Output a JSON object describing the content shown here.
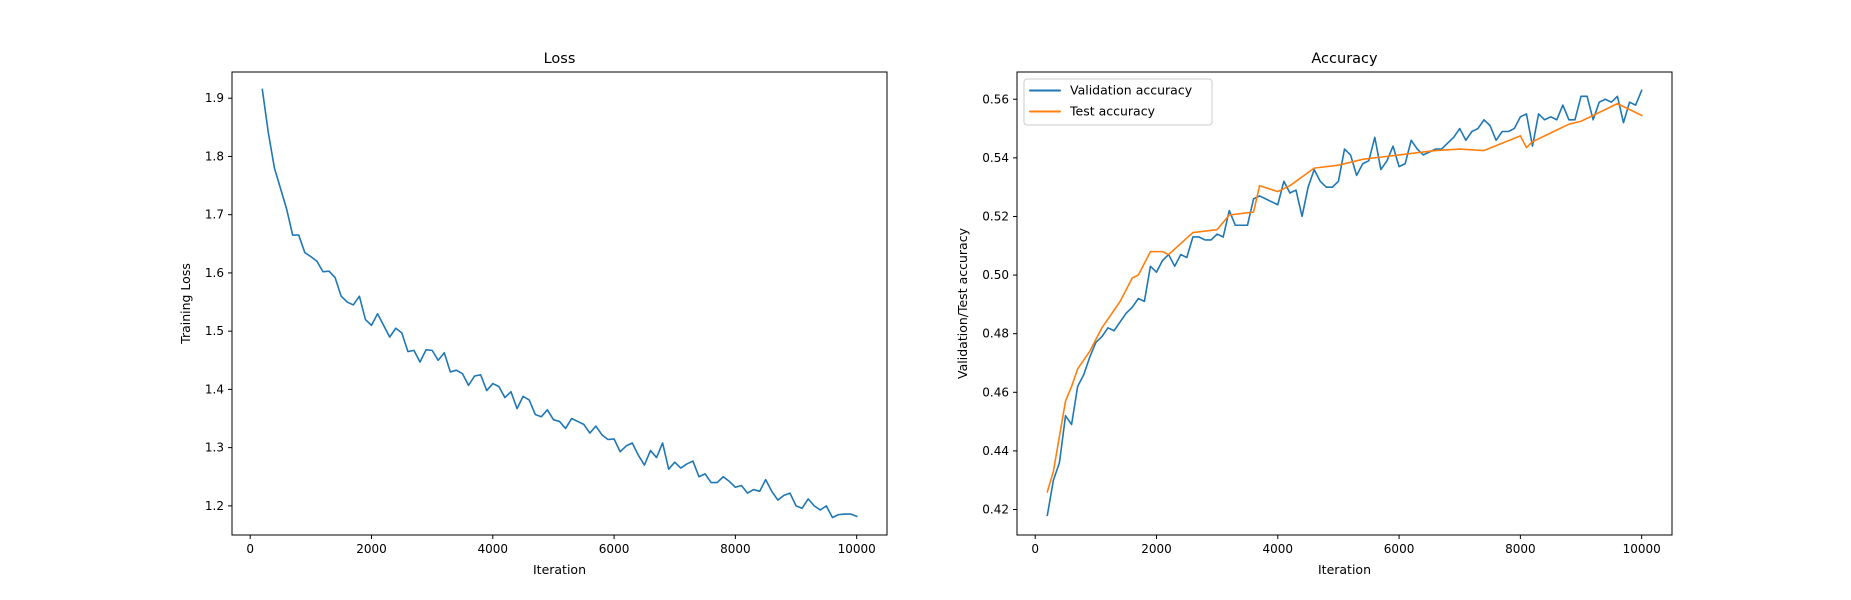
{
  "chart_data": [
    {
      "type": "line",
      "title": "Loss",
      "xlabel": "Iteration",
      "ylabel": "Training Loss",
      "xlim": [
        -300,
        10500
      ],
      "ylim": [
        1.15,
        1.945
      ],
      "xticks": [
        "0",
        "2000",
        "4000",
        "6000",
        "8000",
        "10000"
      ],
      "yticks": [
        "1.2",
        "1.3",
        "1.4",
        "1.5",
        "1.6",
        "1.7",
        "1.8",
        "1.9"
      ],
      "grid": false,
      "series": [
        {
          "color": "#1f77b4",
          "x": [
            200,
            300,
            400,
            500,
            600,
            700,
            800,
            900,
            1000,
            1100,
            1200,
            1300,
            1400,
            1500,
            1600,
            1700,
            1800,
            1900,
            2000,
            2100,
            2200,
            2300,
            2400,
            2500,
            2600,
            2700,
            2800,
            2900,
            3000,
            3100,
            3200,
            3300,
            3400,
            3500,
            3600,
            3700,
            3800,
            3900,
            4000,
            4100,
            4200,
            4300,
            4400,
            4500,
            4600,
            4700,
            4800,
            4900,
            5000,
            5100,
            5200,
            5300,
            5400,
            5500,
            5600,
            5700,
            5800,
            5900,
            6000,
            6100,
            6200,
            6300,
            6400,
            6500,
            6600,
            6700,
            6800,
            6900,
            7000,
            7100,
            7200,
            7300,
            7400,
            7500,
            7600,
            7700,
            7800,
            7900,
            8000,
            8100,
            8200,
            8300,
            8400,
            8500,
            8600,
            8700,
            8800,
            8900,
            9000,
            9100,
            9200,
            9300,
            9400,
            9500,
            9600,
            9700,
            9800,
            9900,
            10000
          ],
          "y": [
            1.915,
            1.84,
            1.78,
            1.745,
            1.71,
            1.665,
            1.665,
            1.635,
            1.628,
            1.62,
            1.602,
            1.603,
            1.592,
            1.56,
            1.55,
            1.545,
            1.56,
            1.52,
            1.51,
            1.53,
            1.51,
            1.49,
            1.505,
            1.497,
            1.465,
            1.467,
            1.447,
            1.468,
            1.467,
            1.45,
            1.463,
            1.43,
            1.433,
            1.427,
            1.407,
            1.423,
            1.425,
            1.398,
            1.41,
            1.405,
            1.386,
            1.396,
            1.367,
            1.388,
            1.382,
            1.357,
            1.353,
            1.365,
            1.348,
            1.345,
            1.333,
            1.35,
            1.345,
            1.34,
            1.325,
            1.337,
            1.322,
            1.314,
            1.315,
            1.293,
            1.303,
            1.308,
            1.287,
            1.27,
            1.295,
            1.283,
            1.308,
            1.263,
            1.275,
            1.265,
            1.272,
            1.277,
            1.25,
            1.255,
            1.24,
            1.24,
            1.25,
            1.242,
            1.232,
            1.235,
            1.222,
            1.228,
            1.225,
            1.245,
            1.225,
            1.21,
            1.218,
            1.222,
            1.2,
            1.196,
            1.212,
            1.2,
            1.193,
            1.2,
            1.18,
            1.185,
            1.186,
            1.186,
            1.182
          ]
        }
      ]
    },
    {
      "type": "line",
      "title": "Accuracy",
      "xlabel": "Iteration",
      "ylabel": "Validation/Test accuracy",
      "xlim": [
        -300,
        10500
      ],
      "ylim": [
        0.4113,
        0.5693
      ],
      "xticks": [
        "0",
        "2000",
        "4000",
        "6000",
        "8000",
        "10000"
      ],
      "yticks": [
        "0.42",
        "0.44",
        "0.46",
        "0.48",
        "0.50",
        "0.52",
        "0.54",
        "0.56"
      ],
      "grid": false,
      "legend": "top-left",
      "series": [
        {
          "name": "Validation accuracy",
          "color": "#1f77b4",
          "x": [
            200,
            300,
            400,
            500,
            600,
            700,
            800,
            900,
            1000,
            1100,
            1200,
            1300,
            1400,
            1500,
            1600,
            1700,
            1800,
            1900,
            2000,
            2100,
            2200,
            2300,
            2400,
            2500,
            2600,
            2700,
            2800,
            2900,
            3000,
            3100,
            3200,
            3300,
            3400,
            3500,
            3600,
            3700,
            3800,
            3900,
            4000,
            4100,
            4200,
            4300,
            4400,
            4500,
            4600,
            4700,
            4800,
            4900,
            5000,
            5100,
            5200,
            5300,
            5400,
            5500,
            5600,
            5700,
            5800,
            5900,
            6000,
            6100,
            6200,
            6300,
            6400,
            6500,
            6600,
            6700,
            6800,
            6900,
            7000,
            7100,
            7200,
            7300,
            7400,
            7500,
            7600,
            7700,
            7800,
            7900,
            8000,
            8100,
            8200,
            8300,
            8400,
            8500,
            8600,
            8700,
            8800,
            8900,
            9000,
            9100,
            9200,
            9300,
            9400,
            9500,
            9600,
            9700,
            9800,
            9900,
            10000
          ],
          "y": [
            0.418,
            0.43,
            0.436,
            0.452,
            0.449,
            0.462,
            0.466,
            0.472,
            0.477,
            0.479,
            0.482,
            0.481,
            0.484,
            0.487,
            0.489,
            0.492,
            0.491,
            0.503,
            0.501,
            0.505,
            0.507,
            0.503,
            0.507,
            0.506,
            0.513,
            0.513,
            0.512,
            0.512,
            0.514,
            0.513,
            0.522,
            0.517,
            0.517,
            0.517,
            0.526,
            0.527,
            0.526,
            0.525,
            0.524,
            0.532,
            0.528,
            0.529,
            0.52,
            0.53,
            0.536,
            0.532,
            0.53,
            0.53,
            0.532,
            0.543,
            0.541,
            0.534,
            0.538,
            0.539,
            0.547,
            0.536,
            0.539,
            0.544,
            0.537,
            0.538,
            0.546,
            0.543,
            0.541,
            0.542,
            0.543,
            0.543,
            0.545,
            0.547,
            0.55,
            0.546,
            0.549,
            0.55,
            0.553,
            0.551,
            0.546,
            0.549,
            0.549,
            0.55,
            0.554,
            0.555,
            0.544,
            0.555,
            0.553,
            0.554,
            0.553,
            0.558,
            0.553,
            0.553,
            0.561,
            0.561,
            0.553,
            0.559,
            0.56,
            0.559,
            0.561,
            0.552,
            0.559,
            0.558,
            0.563
          ]
        },
        {
          "name": "Test accuracy",
          "color": "#ff7f0e",
          "x": [
            200,
            300,
            400,
            500,
            600,
            700,
            800,
            900,
            1000,
            1100,
            1200,
            1300,
            1400,
            1500,
            1600,
            1700,
            1800,
            1900,
            2000,
            2100,
            2200,
            2600,
            3000,
            3200,
            3600,
            3700,
            4000,
            4200,
            4600,
            5000,
            5400,
            5800,
            6200,
            6600,
            7000,
            7400,
            8000,
            8100,
            8200,
            8300,
            8400,
            8600,
            8800,
            9000,
            9200,
            9400,
            9600,
            9800,
            10000
          ],
          "y": [
            0.426,
            0.433,
            0.445,
            0.457,
            0.462,
            0.468,
            0.471,
            0.474,
            0.478,
            0.482,
            0.485,
            0.488,
            0.491,
            0.495,
            0.499,
            0.5,
            0.504,
            0.508,
            0.508,
            0.508,
            0.507,
            0.5145,
            0.5155,
            0.5205,
            0.5215,
            0.5305,
            0.5285,
            0.5305,
            0.5365,
            0.5375,
            0.5395,
            0.5405,
            0.5415,
            0.5425,
            0.543,
            0.5425,
            0.5475,
            0.5435,
            0.5455,
            0.5465,
            0.5475,
            0.5495,
            0.5515,
            0.5525,
            0.5545,
            0.5565,
            0.5585,
            0.5565,
            0.5545
          ]
        }
      ]
    }
  ]
}
